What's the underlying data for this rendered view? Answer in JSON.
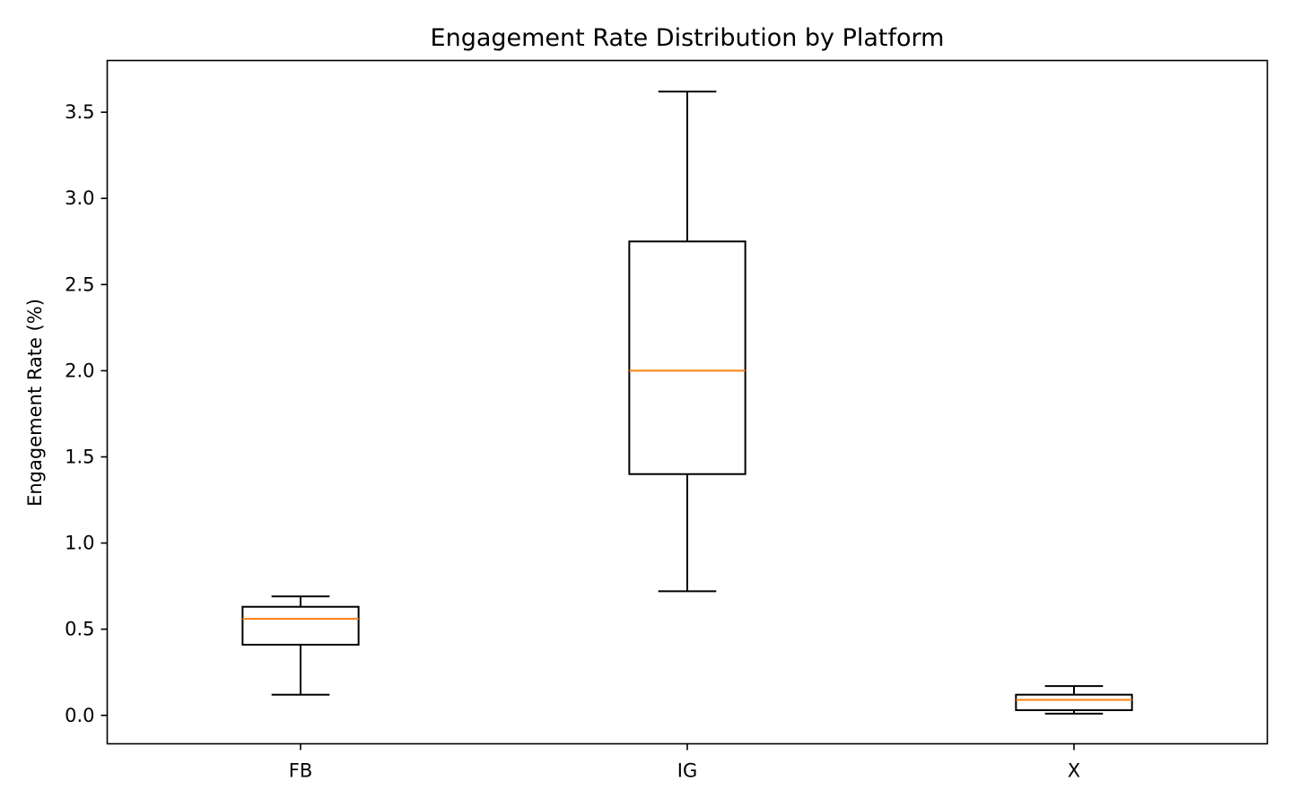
{
  "chart_data": {
    "type": "box",
    "title": "Engagement Rate Distribution by Platform",
    "xlabel": "",
    "ylabel": "Engagement Rate (%)",
    "ylim": [
      -0.165,
      3.8
    ],
    "yticks": [
      0.0,
      0.5,
      1.0,
      1.5,
      2.0,
      2.5,
      3.0,
      3.5
    ],
    "ytick_labels": [
      "0.0",
      "0.5",
      "1.0",
      "1.5",
      "2.0",
      "2.5",
      "3.0",
      "3.5"
    ],
    "categories": [
      "FB",
      "IG",
      "X"
    ],
    "boxes": [
      {
        "category": "FB",
        "whisker_low": 0.12,
        "q1": 0.41,
        "median": 0.56,
        "q3": 0.63,
        "whisker_high": 0.69
      },
      {
        "category": "IG",
        "whisker_low": 0.72,
        "q1": 1.4,
        "median": 2.0,
        "q3": 2.75,
        "whisker_high": 3.62
      },
      {
        "category": "X",
        "whisker_low": 0.01,
        "q1": 0.03,
        "median": 0.09,
        "q3": 0.12,
        "whisker_high": 0.17
      }
    ],
    "grid": false,
    "colors": {
      "box": "#000000",
      "median": "#ff7f0e"
    }
  }
}
